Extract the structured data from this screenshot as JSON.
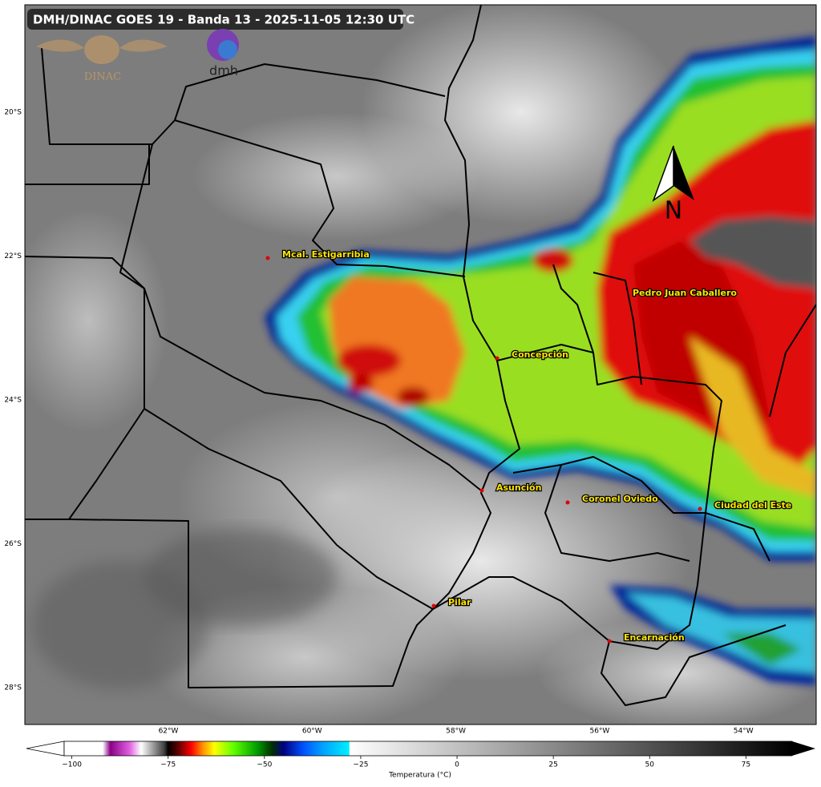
{
  "header": {
    "title": "DMH/DINAC GOES 19 - Banda 13 - 2025-11-05 12:30 UTC"
  },
  "logos": {
    "dinac": "DINAC",
    "dmh": "dmh"
  },
  "north_arrow": "N",
  "map": {
    "lat_labels": [
      "20°S",
      "22°S",
      "24°S",
      "26°S",
      "28°S"
    ],
    "lon_labels": [
      "62°W",
      "60°W",
      "58°W",
      "56°W",
      "54°W"
    ],
    "cities": [
      "Mcal. Estigarribia",
      "Concepción",
      "Pedro Juan Caballero",
      "Asunción",
      "Coronel Oviedo",
      "Ciudad del Este",
      "Pilar",
      "Encarnación"
    ]
  },
  "colorbar": {
    "label": "Temperatura (°C)",
    "lim": [
      -102,
      87
    ],
    "ticks": [
      {
        "value": -100,
        "label": "−100"
      },
      {
        "value": -75,
        "label": "−75"
      },
      {
        "value": -50,
        "label": "−50"
      },
      {
        "value": -25,
        "label": "−25"
      },
      0,
      25,
      50,
      75
    ]
  }
}
